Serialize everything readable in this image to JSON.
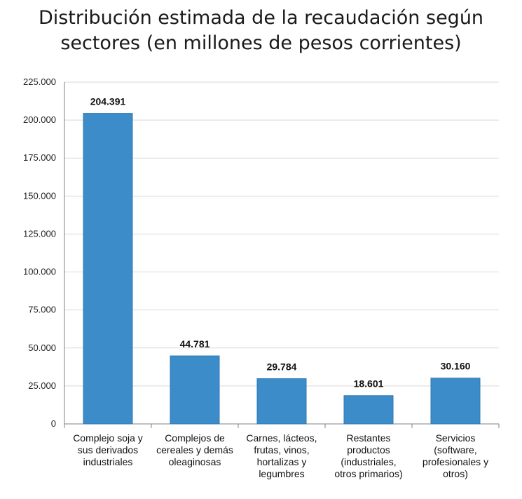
{
  "chart_data": {
    "type": "bar",
    "title_lines": [
      "Distribución estimada de la recaudación según",
      "sectores (en millones de pesos corrientes)"
    ],
    "categories": [
      [
        "Complejo soja y",
        "sus derivados",
        "industriales"
      ],
      [
        "Complejos de",
        "cereales y demás",
        "oleaginosas"
      ],
      [
        "Carnes, lácteos,",
        "frutas, vinos,",
        "hortalizas y",
        "legumbres"
      ],
      [
        "Restantes",
        "productos",
        "(industriales,",
        "otros primarios)"
      ],
      [
        "Servicios",
        "(software,",
        "profesionales y",
        "otros)"
      ]
    ],
    "values": [
      204391,
      44781,
      29784,
      18601,
      30160
    ],
    "value_labels": [
      "204.391",
      "44.781",
      "29.784",
      "18.601",
      "30.160"
    ],
    "ylim": [
      0,
      225000
    ],
    "y_ticks": [
      0,
      25000,
      50000,
      75000,
      100000,
      125000,
      150000,
      175000,
      200000,
      225000
    ],
    "y_tick_labels": [
      "0",
      "25.000",
      "50.000",
      "75.000",
      "100.000",
      "125.000",
      "150.000",
      "175.000",
      "200.000",
      "225.000"
    ],
    "xlabel": "",
    "ylabel": "",
    "grid": true,
    "bar_color": "#3b8cc9",
    "bar_edge_color": "#2f7ab3",
    "grid_color": "#d9d9d9",
    "axis_color": "#808080"
  }
}
